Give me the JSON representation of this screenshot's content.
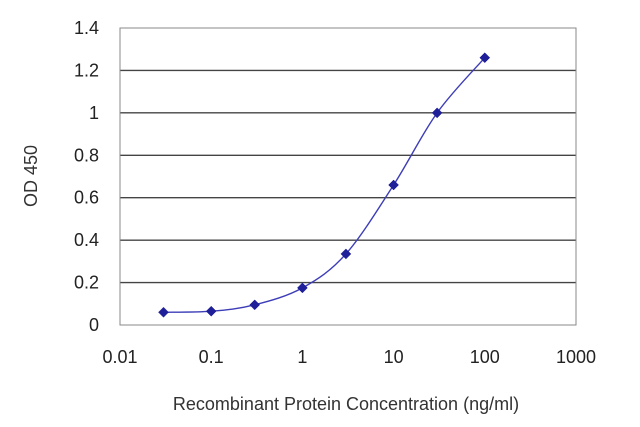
{
  "chart_data": {
    "type": "line",
    "xlabel": "Recombinant Protein Concentration (ng/ml)",
    "ylabel": "OD 450",
    "xscale": "log",
    "xlim": [
      0.01,
      1000
    ],
    "ylim": [
      0,
      1.4
    ],
    "x_ticks": [
      0.01,
      0.1,
      1,
      10,
      100,
      1000
    ],
    "x_tick_labels": [
      "0.01",
      "0.1",
      "1",
      "10",
      "100",
      "1000"
    ],
    "y_ticks": [
      0,
      0.2,
      0.4,
      0.6,
      0.8,
      1,
      1.2,
      1.4
    ],
    "y_tick_labels": [
      "0",
      "0.2",
      "0.4",
      "0.6",
      "0.8",
      "1",
      "1.2",
      "1.4"
    ],
    "grid": "horizontal",
    "legend": "none",
    "series": [
      {
        "x": [
          0.03,
          0.1,
          0.3,
          1,
          3,
          10,
          30,
          100
        ],
        "y": [
          0.06,
          0.065,
          0.095,
          0.175,
          0.335,
          0.66,
          1.0,
          1.26
        ],
        "color": "#1f1f99",
        "marker": "diamond"
      }
    ]
  }
}
